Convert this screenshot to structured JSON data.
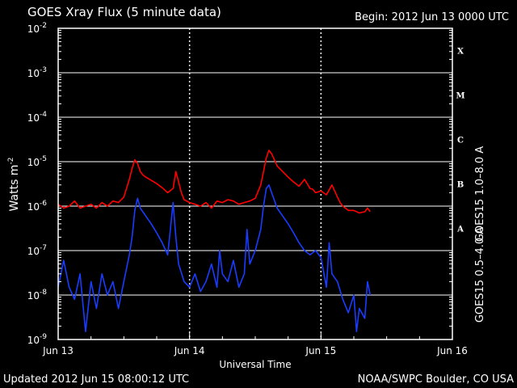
{
  "header": {
    "title": "GOES Xray Flux (5 minute data)",
    "begin": "Begin:  2012 Jun 13 0000 UTC"
  },
  "footer": {
    "updated": "Updated 2012 Jun 15 08:00:12 UTC",
    "credit": "NOAA/SWPC Boulder, CO USA"
  },
  "chart_data": {
    "type": "line",
    "title": "GOES Xray Flux (5 minute data)",
    "xlabel": "Universal Time",
    "ylabel": "Watts m",
    "ylabel_sup": "-2",
    "y_scale": "log",
    "ylim": [
      1e-09,
      0.01
    ],
    "xlim": [
      "2012-06-13 00:00",
      "2012-06-16 00:00"
    ],
    "x_ticks": [
      "Jun 13",
      "Jun 14",
      "Jun 15",
      "Jun 16"
    ],
    "y_ticks": [
      {
        "base": "10",
        "exp": "-9"
      },
      {
        "base": "10",
        "exp": "-8"
      },
      {
        "base": "10",
        "exp": "-7"
      },
      {
        "base": "10",
        "exp": "-6"
      },
      {
        "base": "10",
        "exp": "-5"
      },
      {
        "base": "10",
        "exp": "-4"
      },
      {
        "base": "10",
        "exp": "-3"
      },
      {
        "base": "10",
        "exp": "-2"
      }
    ],
    "flare_classes": [
      {
        "label": "A",
        "flux": 1e-07
      },
      {
        "label": "B",
        "flux": 1e-06
      },
      {
        "label": "C",
        "flux": 1e-05
      },
      {
        "label": "M",
        "flux": 0.0001
      },
      {
        "label": "X",
        "flux": 0.001
      }
    ],
    "grid": true,
    "series": [
      {
        "name": "GOES15 1.0–8.0 A",
        "color": "#ff0000",
        "x_hours": [
          0,
          1,
          2,
          3,
          4,
          5,
          6,
          7,
          8,
          9,
          10,
          11,
          12,
          13,
          13.5,
          14,
          14.5,
          15,
          15.5,
          16,
          17,
          18,
          19,
          20,
          21,
          21.5,
          22,
          22.5,
          23,
          24,
          25,
          26,
          27,
          28,
          29,
          30,
          31,
          32,
          33,
          34,
          35,
          36,
          37,
          38,
          38.5,
          39,
          39.5,
          40,
          41,
          42,
          43,
          44,
          45,
          46,
          46.5,
          47,
          48,
          49,
          50,
          50.5,
          51,
          51.5,
          52,
          53,
          54,
          55,
          56,
          56.5,
          57
        ],
        "values": [
          1.1e-06,
          9e-07,
          1e-06,
          1.3e-06,
          9e-07,
          1e-06,
          1.1e-06,
          9e-07,
          1.2e-06,
          1e-06,
          1.3e-06,
          1.2e-06,
          1.6e-06,
          4e-06,
          7e-06,
          1.1e-05,
          9e-06,
          6e-06,
          5e-06,
          4.5e-06,
          3.8e-06,
          3.2e-06,
          2.6e-06,
          2e-06,
          2.5e-06,
          6e-06,
          3.5e-06,
          2e-06,
          1.4e-06,
          1.2e-06,
          1.1e-06,
          1e-06,
          1.2e-06,
          9e-07,
          1.3e-06,
          1.2e-06,
          1.4e-06,
          1.3e-06,
          1.1e-06,
          1.2e-06,
          1.3e-06,
          1.5e-06,
          3e-06,
          1.2e-05,
          1.8e-05,
          1.5e-05,
          1.1e-05,
          8e-06,
          6e-06,
          4.5e-06,
          3.5e-06,
          2.8e-06,
          4e-06,
          2.5e-06,
          2.4e-06,
          2e-06,
          2.2e-06,
          1.8e-06,
          3e-06,
          2.2e-06,
          1.6e-06,
          1.2e-06,
          1e-06,
          8e-07,
          8e-07,
          7e-07,
          7.5e-07,
          9e-07,
          7.5e-07
        ]
      },
      {
        "name": "GOES15 0.5–4.0 A",
        "color": "#1a3cff",
        "x_hours": [
          0,
          1,
          2,
          3,
          4,
          5,
          6,
          7,
          8,
          9,
          10,
          11,
          12,
          13,
          13.5,
          14,
          14.5,
          15,
          16,
          17,
          18,
          19,
          20,
          20.5,
          21,
          21.5,
          22,
          23,
          24,
          25,
          26,
          27,
          28,
          29,
          29.5,
          30,
          31,
          32,
          33,
          34,
          34.5,
          35,
          36,
          37,
          37.5,
          38,
          38.5,
          39,
          40,
          41,
          42,
          43,
          44,
          45,
          46,
          47,
          48,
          49,
          49.5,
          50,
          51,
          52,
          53,
          54,
          54.5,
          55,
          56,
          56.5,
          57
        ],
        "values": [
          1.5e-08,
          6e-08,
          1.5e-08,
          8e-09,
          3e-08,
          1.5e-09,
          2e-08,
          5e-09,
          3e-08,
          1e-08,
          2e-08,
          5e-09,
          2e-08,
          8e-08,
          2e-07,
          8e-07,
          1.5e-06,
          9e-07,
          6e-07,
          4e-07,
          2.5e-07,
          1.5e-07,
          8e-08,
          3e-07,
          1.2e-06,
          2e-07,
          5e-08,
          2e-08,
          1.5e-08,
          3e-08,
          1.2e-08,
          2e-08,
          5e-08,
          1.5e-08,
          1e-07,
          3e-08,
          2e-08,
          6e-08,
          1.5e-08,
          3e-08,
          3e-07,
          5e-08,
          1e-07,
          3e-07,
          1e-06,
          2.5e-06,
          3e-06,
          2e-06,
          9e-07,
          6e-07,
          4e-07,
          2.5e-07,
          1.5e-07,
          1e-07,
          8e-08,
          1e-07,
          7e-08,
          1.5e-08,
          1.5e-07,
          3e-08,
          2e-08,
          8e-09,
          4e-09,
          1e-08,
          1.5e-09,
          5e-09,
          3e-09,
          2e-08,
          1e-08
        ]
      }
    ]
  }
}
